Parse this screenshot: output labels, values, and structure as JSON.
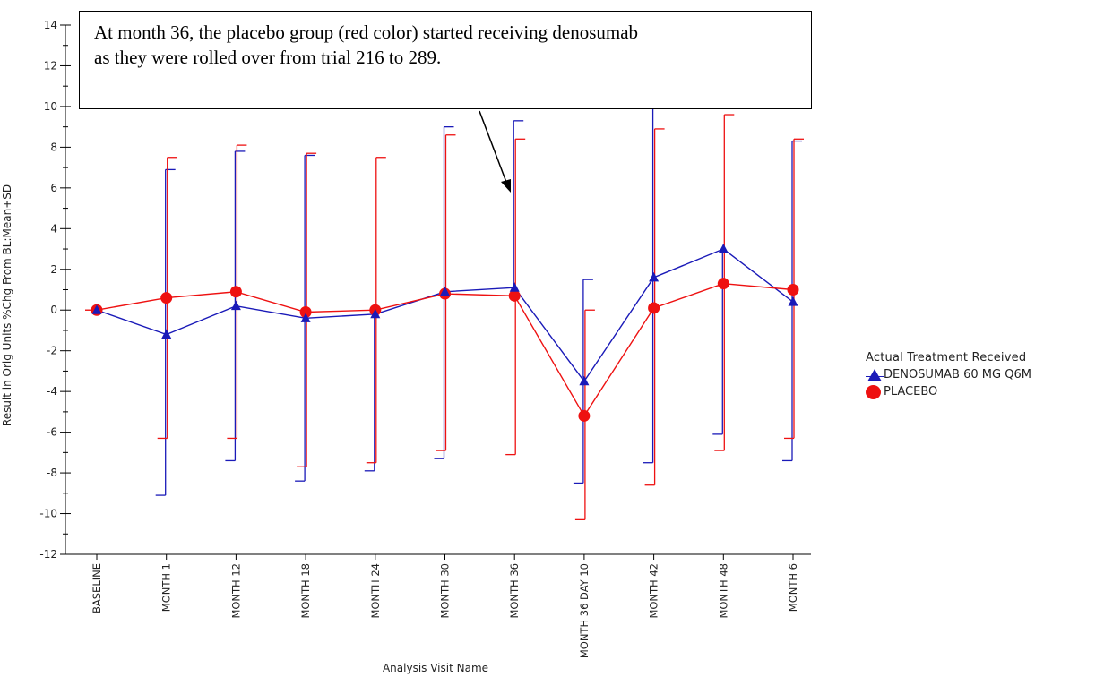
{
  "annotation": {
    "line1": "At month 36, the placebo group (red color) started receiving denosumab",
    "line2": "as they were rolled over from trial 216 to 289."
  },
  "legend": {
    "title": "Actual Treatment Received",
    "items": [
      {
        "label": "DENOSUMAB 60 MG Q6M",
        "marker": "triangle"
      },
      {
        "label": "PLACEBO",
        "marker": "circle"
      }
    ]
  },
  "chart_data": {
    "type": "line",
    "title": "",
    "xlabel": "Analysis Visit Name",
    "ylabel": "Result in Orig Units %Chg From BL:Mean+SD",
    "ylim": [
      -12,
      14
    ],
    "yticks": [
      -12,
      -10,
      -8,
      -6,
      -4,
      -2,
      0,
      2,
      4,
      6,
      8,
      10,
      12,
      14
    ],
    "categories": [
      "BASELINE",
      "MONTH 1",
      "MONTH 12",
      "MONTH 18",
      "MONTH 24",
      "MONTH 30",
      "MONTH 36",
      "MONTH 36 DAY 10",
      "MONTH 42",
      "MONTH 48",
      "MONTH 6"
    ],
    "series": [
      {
        "name": "DENOSUMAB 60 MG Q6M",
        "color": "#1a1ab8",
        "marker": "triangle",
        "values": [
          0,
          -1.2,
          0.2,
          -0.4,
          -0.2,
          0.9,
          1.1,
          -3.5,
          1.6,
          3.0,
          0.4
        ],
        "sd_upper": [
          0,
          6.9,
          7.8,
          7.6,
          null,
          9.0,
          9.3,
          1.5,
          10.0,
          null,
          8.3
        ],
        "sd_lower": [
          0,
          -9.1,
          -7.4,
          -8.4,
          -7.9,
          -7.3,
          null,
          -8.5,
          -7.5,
          -6.1,
          -7.4
        ]
      },
      {
        "name": "PLACEBO",
        "color": "#ee1111",
        "marker": "circle",
        "values": [
          0,
          0.6,
          0.9,
          -0.1,
          0,
          0.8,
          0.7,
          -5.2,
          0.1,
          1.3,
          1.0
        ],
        "sd_upper": [
          0,
          7.5,
          8.1,
          7.7,
          7.5,
          8.6,
          8.4,
          0,
          8.9,
          9.6,
          8.4
        ],
        "sd_lower": [
          0,
          -6.3,
          -6.3,
          -7.7,
          -7.5,
          -6.9,
          -7.1,
          -10.3,
          -8.6,
          -6.9,
          -6.3
        ]
      }
    ]
  }
}
